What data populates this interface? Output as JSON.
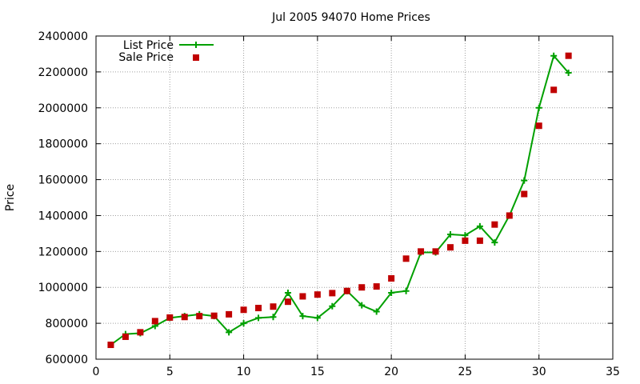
{
  "chart_data": {
    "type": "line",
    "title": "Jul 2005 94070 Home Prices",
    "ylabel": "Price",
    "xlabel": "",
    "xlim": [
      0,
      35
    ],
    "ylim": [
      600000,
      2400000
    ],
    "xticks": [
      0,
      5,
      10,
      15,
      20,
      25,
      30,
      35
    ],
    "yticks": [
      600000,
      800000,
      1000000,
      1200000,
      1400000,
      1600000,
      1800000,
      2000000,
      2200000,
      2400000
    ],
    "xtick_labels": [
      "0",
      "5",
      "10",
      "15",
      "20",
      "25",
      "30",
      "35"
    ],
    "ytick_labels": [
      "600000",
      "800000",
      "1000000",
      "1200000",
      "1400000",
      "1600000",
      "1800000",
      "2000000",
      "2200000",
      "2400000"
    ],
    "grid": true,
    "legend_position": "top-left",
    "series": [
      {
        "name": "List Price",
        "style": "line-with-plus-markers",
        "color": "#00a000",
        "x": [
          1,
          2,
          3,
          4,
          5,
          6,
          7,
          8,
          9,
          10,
          11,
          12,
          13,
          14,
          15,
          16,
          17,
          18,
          19,
          20,
          21,
          22,
          23,
          24,
          25,
          26,
          27,
          28,
          29,
          30,
          31,
          32
        ],
        "values": [
          680000,
          740000,
          745000,
          785000,
          830000,
          840000,
          850000,
          840000,
          750000,
          800000,
          830000,
          835000,
          970000,
          840000,
          830000,
          895000,
          980000,
          900000,
          865000,
          970000,
          980000,
          1195000,
          1195000,
          1295000,
          1290000,
          1340000,
          1250000,
          1400000,
          1595000,
          2000000,
          2290000,
          2195000
        ]
      },
      {
        "name": "Sale Price",
        "style": "square-markers",
        "color": "#c00000",
        "x": [
          1,
          2,
          3,
          4,
          5,
          6,
          7,
          8,
          9,
          10,
          11,
          12,
          13,
          14,
          15,
          16,
          17,
          18,
          19,
          20,
          21,
          22,
          23,
          24,
          25,
          26,
          27,
          28,
          29,
          30,
          31,
          32
        ],
        "values": [
          680000,
          725000,
          750000,
          812000,
          832000,
          835000,
          840000,
          842000,
          850000,
          875000,
          885000,
          893000,
          920000,
          950000,
          960000,
          968000,
          980000,
          1000000,
          1005000,
          1050000,
          1160000,
          1200000,
          1200000,
          1223000,
          1260000,
          1260000,
          1350000,
          1400000,
          1520000,
          1900000,
          2100000,
          2290000
        ]
      }
    ]
  }
}
